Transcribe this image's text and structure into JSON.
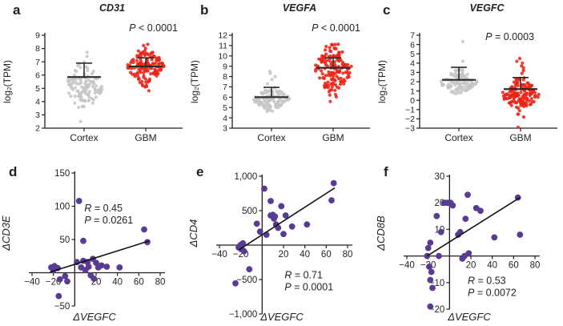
{
  "panels": {
    "a": {
      "letter": "a"
    },
    "b": {
      "letter": "b"
    },
    "c": {
      "letter": "c"
    },
    "d": {
      "letter": "d"
    },
    "e": {
      "letter": "e"
    },
    "f": {
      "letter": "f"
    }
  },
  "colors": {
    "cortex_dots": "#c6c6c6",
    "gbm_dots": "#ea2418",
    "scatter_dots": "#5a3b94",
    "axis": "#231f20",
    "error_bar": "#2b2b2b",
    "trend_line": "#111111"
  },
  "chart_data": [
    {
      "id": "a",
      "type": "beeswarm",
      "title": "CD31",
      "p_label": "P < 0.0001",
      "ylabel": "log₂(TPM)",
      "ylim": [
        2,
        9
      ],
      "yticks": [
        2,
        3,
        4,
        5,
        6,
        7,
        8,
        9
      ],
      "categories": [
        "Cortex",
        "GBM"
      ],
      "seed": 7,
      "groups": [
        {
          "name": "Cortex",
          "color": "#c6c6c6",
          "n": 115,
          "center": 5.1,
          "sd": 0.95,
          "min": 3.5,
          "max": 8.45,
          "outliers": [
            2.5
          ],
          "mean": 5.85,
          "err_top": 6.9
        },
        {
          "name": "GBM",
          "color": "#ea2418",
          "n": 150,
          "center": 6.7,
          "sd": 0.75,
          "min": 4.3,
          "max": 8.5,
          "outliers": [],
          "mean": 6.65,
          "err_top": 7.3
        }
      ]
    },
    {
      "id": "b",
      "type": "beeswarm",
      "title": "VEGFA",
      "p_label": "P < 0.0001",
      "ylabel": "log₂(TPM)",
      "ylim": [
        3,
        12
      ],
      "yticks": [
        3,
        4,
        5,
        6,
        7,
        8,
        9,
        10,
        11,
        12
      ],
      "categories": [
        "Cortex",
        "GBM"
      ],
      "seed": 13,
      "groups": [
        {
          "name": "Cortex",
          "color": "#c6c6c6",
          "n": 115,
          "center": 5.8,
          "sd": 0.6,
          "min": 3.9,
          "max": 7.0,
          "outliers": [
            7.3,
            7.7,
            8.0,
            8.3,
            8.5
          ],
          "mean": 6.0,
          "err_top": 6.95
        },
        {
          "name": "GBM",
          "color": "#ea2418",
          "n": 150,
          "center": 8.8,
          "sd": 1.35,
          "min": 4.1,
          "max": 11.2,
          "outliers": [],
          "mean": 8.85,
          "err_top": 9.8
        }
      ]
    },
    {
      "id": "c",
      "type": "beeswarm",
      "title": "VEGFC",
      "p_label": "P = 0.0003",
      "ylabel": "log₂(TPM)",
      "ylim": [
        -3,
        7
      ],
      "yticks": [
        -3,
        -2,
        -1,
        0,
        1,
        2,
        3,
        4,
        5,
        6,
        7
      ],
      "categories": [
        "Cortex",
        "GBM"
      ],
      "seed": 29,
      "groups": [
        {
          "name": "Cortex",
          "color": "#c6c6c6",
          "n": 115,
          "center": 1.9,
          "sd": 0.65,
          "min": 0.6,
          "max": 3.6,
          "outliers": [
            4.2,
            6.3
          ],
          "mean": 2.2,
          "err_top": 3.55
        },
        {
          "name": "GBM",
          "color": "#ea2418",
          "n": 145,
          "center": 0.6,
          "sd": 0.9,
          "min": -2.2,
          "max": 2.6,
          "outliers": [
            2.9,
            3.2,
            3.5,
            3.7,
            4.0,
            4.2,
            4.5,
            -2.9
          ],
          "mean": 1.2,
          "err_top": 2.45
        }
      ]
    },
    {
      "id": "d",
      "type": "scatter",
      "xlabel": "ΔVEGFC",
      "ylabel": "ΔCD3E",
      "xlim": [
        -40,
        80
      ],
      "ylim": [
        -50,
        150
      ],
      "xticks": [
        -40,
        -20,
        20,
        40,
        60,
        80
      ],
      "yticks": [
        -50,
        50,
        100,
        150
      ],
      "points": [
        [
          -22,
          8
        ],
        [
          -20,
          4
        ],
        [
          -19,
          10
        ],
        [
          -16,
          7
        ],
        [
          -14,
          -10
        ],
        [
          -15,
          -35
        ],
        [
          -9,
          -5
        ],
        [
          -7,
          -13
        ],
        [
          2,
          16
        ],
        [
          4,
          108
        ],
        [
          6,
          8
        ],
        [
          8,
          48
        ],
        [
          8,
          18
        ],
        [
          10,
          4
        ],
        [
          12,
          16
        ],
        [
          13,
          9
        ],
        [
          15,
          -4
        ],
        [
          17,
          21
        ],
        [
          18,
          -9
        ],
        [
          20,
          15
        ],
        [
          22,
          8
        ],
        [
          25,
          11
        ],
        [
          30,
          9
        ],
        [
          42,
          8
        ],
        [
          65,
          65
        ],
        [
          68,
          46
        ]
      ],
      "line": {
        "x1": -23,
        "y1": 1,
        "x2": 70,
        "y2": 48
      },
      "r_label": "R = 0.45",
      "p_label": "P = 0.0261",
      "annot_pos": [
        9,
        92
      ]
    },
    {
      "id": "e",
      "type": "scatter",
      "xlabel": "ΔVEGFC",
      "ylabel": "ΔCD4",
      "xlim": [
        -40,
        80
      ],
      "ylim": [
        -1000,
        1000
      ],
      "xticks": [
        -40,
        -20,
        20,
        40,
        60,
        80
      ],
      "yticks": [
        -1000,
        -500,
        500,
        1000
      ],
      "points": [
        [
          -25,
          -555
        ],
        [
          -22,
          -35
        ],
        [
          -21,
          -15
        ],
        [
          -20,
          5
        ],
        [
          -19,
          -60
        ],
        [
          -18,
          25
        ],
        [
          -17,
          -90
        ],
        [
          -12,
          -350
        ],
        [
          -5,
          310
        ],
        [
          -2,
          195
        ],
        [
          2,
          820
        ],
        [
          4,
          150
        ],
        [
          8,
          640
        ],
        [
          8,
          430
        ],
        [
          10,
          440
        ],
        [
          11,
          385
        ],
        [
          12,
          415
        ],
        [
          13,
          300
        ],
        [
          15,
          250
        ],
        [
          18,
          565
        ],
        [
          20,
          160
        ],
        [
          22,
          430
        ],
        [
          28,
          270
        ],
        [
          42,
          300
        ],
        [
          65,
          650
        ],
        [
          67,
          900
        ]
      ],
      "line": {
        "x1": -22,
        "y1": -70,
        "x2": 68,
        "y2": 830
      },
      "r_label": "R = 0.71",
      "p_label": "P = 0.0001",
      "annot_pos": [
        21,
        -480
      ]
    },
    {
      "id": "f",
      "type": "scatter",
      "xlabel": "ΔVEGFC",
      "ylabel": "ΔCD8B",
      "xlim": [
        -40,
        80
      ],
      "ylim": [
        -20,
        30
      ],
      "xticks": [
        -40,
        -20,
        20,
        40,
        60,
        80
      ],
      "yticks": [
        -20,
        -10,
        10,
        20,
        30
      ],
      "points": [
        [
          -21,
          0
        ],
        [
          -20,
          3
        ],
        [
          -19,
          -4
        ],
        [
          -18,
          5
        ],
        [
          -18,
          -9
        ],
        [
          -17,
          -6
        ],
        [
          -16,
          -12
        ],
        [
          -18,
          -19
        ],
        [
          -12,
          15
        ],
        [
          -10,
          0
        ],
        [
          -8,
          9
        ],
        [
          -5,
          20
        ],
        [
          -2,
          20
        ],
        [
          1,
          20
        ],
        [
          3,
          19
        ],
        [
          8,
          8
        ],
        [
          10,
          9
        ],
        [
          12,
          -1
        ],
        [
          14,
          0
        ],
        [
          15,
          14
        ],
        [
          17,
          23
        ],
        [
          18,
          1
        ],
        [
          25,
          18
        ],
        [
          29,
          17
        ],
        [
          42,
          7
        ],
        [
          64,
          22
        ],
        [
          66,
          8
        ]
      ],
      "line": {
        "x1": -21,
        "y1": 0,
        "x2": 66,
        "y2": 22
      },
      "r_label": "R = 0.53",
      "p_label": "P = 0.0072",
      "annot_pos": [
        17,
        -10.5
      ]
    }
  ]
}
